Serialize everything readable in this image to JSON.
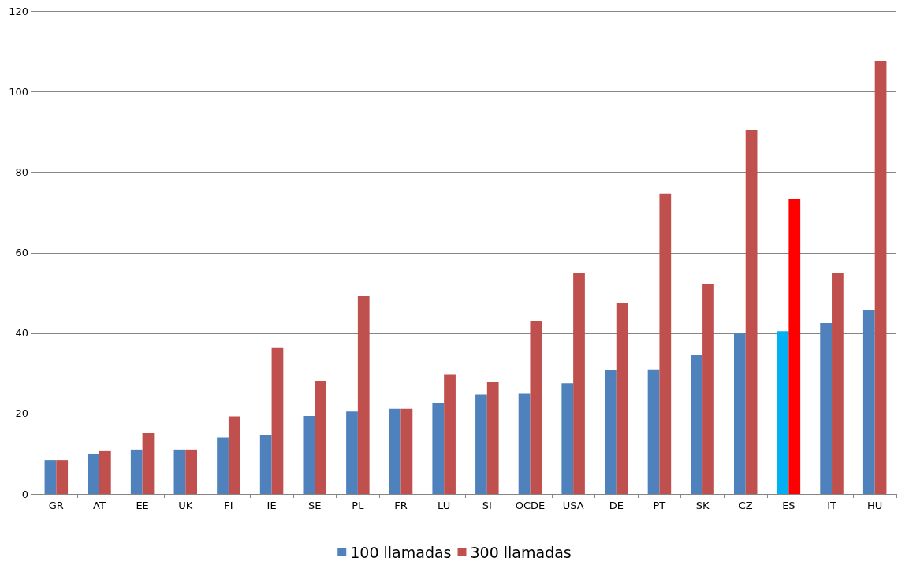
{
  "chart_data": {
    "type": "bar",
    "categories": [
      "GR",
      "AT",
      "EE",
      "UK",
      "FI",
      "IE",
      "SE",
      "PL",
      "FR",
      "LU",
      "SI",
      "OCDE",
      "USA",
      "DE",
      "PT",
      "SK",
      "CZ",
      "ES",
      "IT",
      "HU"
    ],
    "series": [
      {
        "name": "100 llamadas",
        "color": "#4f81bd",
        "colors": [
          "#4f81bd",
          "#4f81bd",
          "#4f81bd",
          "#4f81bd",
          "#4f81bd",
          "#4f81bd",
          "#4f81bd",
          "#4f81bd",
          "#4f81bd",
          "#4f81bd",
          "#4f81bd",
          "#4f81bd",
          "#4f81bd",
          "#4f81bd",
          "#4f81bd",
          "#4f81bd",
          "#4f81bd",
          "#00b0f0",
          "#4f81bd",
          "#4f81bd"
        ],
        "values": [
          8.4,
          10,
          11,
          11,
          14,
          14.7,
          19.4,
          20.5,
          21.2,
          22.6,
          24.8,
          25,
          27.6,
          30.8,
          31,
          34.5,
          39.9,
          40.5,
          42.5,
          45.8
        ]
      },
      {
        "name": "300 llamadas",
        "color": "#c0504d",
        "colors": [
          "#c0504d",
          "#c0504d",
          "#c0504d",
          "#c0504d",
          "#c0504d",
          "#c0504d",
          "#c0504d",
          "#c0504d",
          "#c0504d",
          "#c0504d",
          "#c0504d",
          "#c0504d",
          "#c0504d",
          "#c0504d",
          "#c0504d",
          "#c0504d",
          "#c0504d",
          "#ff0000",
          "#c0504d",
          "#c0504d"
        ],
        "values": [
          8.4,
          10.8,
          15.3,
          11,
          19.3,
          36.3,
          28.1,
          49.2,
          21.2,
          29.7,
          27.8,
          43,
          55,
          47.4,
          74.7,
          52.1,
          90.5,
          73.4,
          55,
          107.6
        ]
      }
    ],
    "ylim": [
      0,
      120
    ],
    "yticks": [
      0,
      20,
      40,
      60,
      80,
      100,
      120
    ],
    "grid": "y",
    "legend": "bottom"
  }
}
